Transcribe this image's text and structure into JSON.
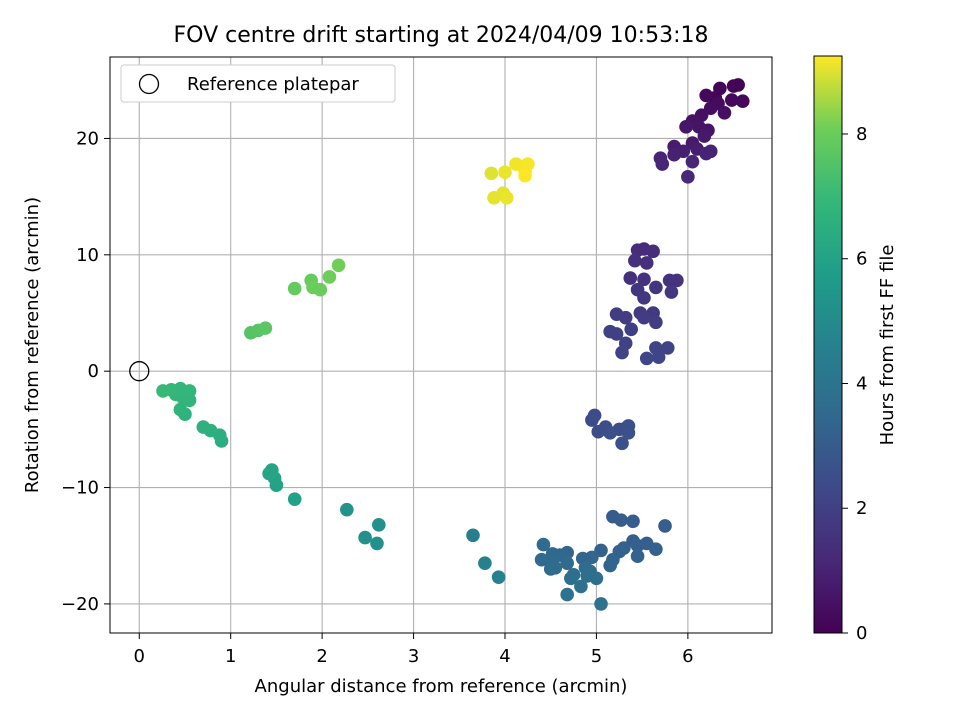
{
  "chart_data": {
    "type": "scatter",
    "title": "FOV centre drift starting at 2024/04/09 10:53:18",
    "xlabel": "Angular distance from reference (arcmin)",
    "ylabel": "Rotation from reference (arcmin)",
    "xlim": [
      -0.32,
      6.92
    ],
    "ylim": [
      -22.5,
      27.0
    ],
    "xticks": [
      0,
      1,
      2,
      3,
      4,
      5,
      6
    ],
    "yticks": [
      -20,
      -10,
      0,
      10,
      20
    ],
    "xtick_labels": [
      "0",
      "1",
      "2",
      "3",
      "4",
      "5",
      "6"
    ],
    "ytick_labels": [
      "−20",
      "−10",
      "0",
      "10",
      "20"
    ],
    "grid": true,
    "colormap": "viridis",
    "colorbar": {
      "label": "Hours from first FF file",
      "range": [
        0,
        9.25
      ],
      "ticks": [
        0,
        2,
        4,
        6,
        8
      ],
      "tick_labels": [
        "0",
        "2",
        "4",
        "6",
        "8"
      ]
    },
    "legend": {
      "placement": "top-left",
      "entries": [
        {
          "label": "Reference platepar",
          "marker": "hollow-circle"
        }
      ]
    },
    "reference_point": {
      "x": 0,
      "y": 0
    },
    "points": [
      {
        "x": 6.55,
        "y": 24.6,
        "c": 0.05
      },
      {
        "x": 6.35,
        "y": 24.3,
        "c": 0.1
      },
      {
        "x": 6.5,
        "y": 24.5,
        "c": 0.1
      },
      {
        "x": 6.3,
        "y": 23.5,
        "c": 0.15
      },
      {
        "x": 6.6,
        "y": 23.2,
        "c": 0.2
      },
      {
        "x": 6.48,
        "y": 23.3,
        "c": 0.2
      },
      {
        "x": 6.2,
        "y": 23.7,
        "c": 0.25
      },
      {
        "x": 6.33,
        "y": 23.0,
        "c": 0.3
      },
      {
        "x": 6.25,
        "y": 22.6,
        "c": 0.35
      },
      {
        "x": 6.4,
        "y": 22.2,
        "c": 0.4
      },
      {
        "x": 6.15,
        "y": 22.0,
        "c": 0.45
      },
      {
        "x": 6.05,
        "y": 21.5,
        "c": 0.5
      },
      {
        "x": 6.12,
        "y": 21.0,
        "c": 0.55
      },
      {
        "x": 6.22,
        "y": 20.7,
        "c": 0.6
      },
      {
        "x": 5.98,
        "y": 21.0,
        "c": 0.65
      },
      {
        "x": 6.18,
        "y": 20.2,
        "c": 0.7
      },
      {
        "x": 6.05,
        "y": 19.6,
        "c": 0.75
      },
      {
        "x": 5.85,
        "y": 19.3,
        "c": 0.8
      },
      {
        "x": 6.1,
        "y": 19.1,
        "c": 0.85
      },
      {
        "x": 5.95,
        "y": 18.9,
        "c": 0.9
      },
      {
        "x": 5.85,
        "y": 18.6,
        "c": 0.95
      },
      {
        "x": 6.2,
        "y": 18.7,
        "c": 1.0
      },
      {
        "x": 6.25,
        "y": 18.9,
        "c": 1.0
      },
      {
        "x": 5.7,
        "y": 18.3,
        "c": 1.05
      },
      {
        "x": 5.72,
        "y": 17.8,
        "c": 1.1
      },
      {
        "x": 6.05,
        "y": 18.0,
        "c": 1.1
      },
      {
        "x": 6.0,
        "y": 16.7,
        "c": 1.15
      },
      {
        "x": 5.52,
        "y": 10.5,
        "c": 1.3
      },
      {
        "x": 5.45,
        "y": 10.4,
        "c": 1.3
      },
      {
        "x": 5.62,
        "y": 10.3,
        "c": 1.35
      },
      {
        "x": 5.42,
        "y": 9.5,
        "c": 1.4
      },
      {
        "x": 5.55,
        "y": 9.3,
        "c": 1.4
      },
      {
        "x": 5.37,
        "y": 8.0,
        "c": 1.45
      },
      {
        "x": 5.52,
        "y": 7.9,
        "c": 1.5
      },
      {
        "x": 5.8,
        "y": 7.8,
        "c": 1.5
      },
      {
        "x": 5.88,
        "y": 7.8,
        "c": 1.55
      },
      {
        "x": 5.45,
        "y": 7.0,
        "c": 1.6
      },
      {
        "x": 5.65,
        "y": 7.2,
        "c": 1.6
      },
      {
        "x": 5.82,
        "y": 6.8,
        "c": 1.65
      },
      {
        "x": 5.52,
        "y": 6.3,
        "c": 1.7
      },
      {
        "x": 5.48,
        "y": 5.0,
        "c": 1.75
      },
      {
        "x": 5.62,
        "y": 5.0,
        "c": 1.8
      },
      {
        "x": 5.22,
        "y": 4.9,
        "c": 1.85
      },
      {
        "x": 5.32,
        "y": 4.6,
        "c": 1.85
      },
      {
        "x": 5.52,
        "y": 4.6,
        "c": 1.9
      },
      {
        "x": 5.65,
        "y": 4.2,
        "c": 1.9
      },
      {
        "x": 5.38,
        "y": 3.6,
        "c": 1.95
      },
      {
        "x": 5.15,
        "y": 3.4,
        "c": 2.0
      },
      {
        "x": 5.22,
        "y": 3.2,
        "c": 2.0
      },
      {
        "x": 5.32,
        "y": 2.4,
        "c": 2.05
      },
      {
        "x": 5.28,
        "y": 1.6,
        "c": 2.1
      },
      {
        "x": 5.65,
        "y": 2.0,
        "c": 2.1
      },
      {
        "x": 5.78,
        "y": 2.0,
        "c": 2.15
      },
      {
        "x": 5.55,
        "y": 1.1,
        "c": 2.2
      },
      {
        "x": 5.68,
        "y": 1.2,
        "c": 2.2
      },
      {
        "x": 4.95,
        "y": -4.2,
        "c": 2.4
      },
      {
        "x": 4.98,
        "y": -3.8,
        "c": 2.4
      },
      {
        "x": 5.1,
        "y": -4.8,
        "c": 2.45
      },
      {
        "x": 5.02,
        "y": -5.2,
        "c": 2.45
      },
      {
        "x": 5.25,
        "y": -5.0,
        "c": 2.5
      },
      {
        "x": 5.32,
        "y": -4.9,
        "c": 2.5
      },
      {
        "x": 5.35,
        "y": -4.7,
        "c": 2.55
      },
      {
        "x": 5.15,
        "y": -5.3,
        "c": 2.55
      },
      {
        "x": 5.28,
        "y": -6.2,
        "c": 2.6
      },
      {
        "x": 5.35,
        "y": -5.3,
        "c": 2.6
      },
      {
        "x": 5.18,
        "y": -12.5,
        "c": 3.0
      },
      {
        "x": 5.27,
        "y": -12.8,
        "c": 3.05
      },
      {
        "x": 5.4,
        "y": -12.9,
        "c": 3.05
      },
      {
        "x": 5.75,
        "y": -13.3,
        "c": 3.1
      },
      {
        "x": 5.4,
        "y": -14.6,
        "c": 3.1
      },
      {
        "x": 5.45,
        "y": -15.0,
        "c": 3.15
      },
      {
        "x": 5.55,
        "y": -14.8,
        "c": 3.15
      },
      {
        "x": 5.65,
        "y": -15.3,
        "c": 3.2
      },
      {
        "x": 5.3,
        "y": -15.2,
        "c": 3.2
      },
      {
        "x": 5.25,
        "y": -15.5,
        "c": 3.25
      },
      {
        "x": 5.05,
        "y": -15.4,
        "c": 3.3
      },
      {
        "x": 5.45,
        "y": -15.9,
        "c": 3.3
      },
      {
        "x": 5.18,
        "y": -16.2,
        "c": 3.35
      },
      {
        "x": 5.15,
        "y": -16.7,
        "c": 3.35
      },
      {
        "x": 4.95,
        "y": -16.0,
        "c": 3.4
      },
      {
        "x": 4.85,
        "y": -16.1,
        "c": 3.4
      },
      {
        "x": 4.68,
        "y": -15.6,
        "c": 3.45
      },
      {
        "x": 4.6,
        "y": -15.8,
        "c": 3.5
      },
      {
        "x": 4.52,
        "y": -15.7,
        "c": 3.5
      },
      {
        "x": 4.42,
        "y": -14.9,
        "c": 3.55
      },
      {
        "x": 4.4,
        "y": -16.2,
        "c": 3.55
      },
      {
        "x": 4.52,
        "y": -16.3,
        "c": 3.6
      },
      {
        "x": 4.68,
        "y": -16.5,
        "c": 3.6
      },
      {
        "x": 4.55,
        "y": -16.9,
        "c": 3.65
      },
      {
        "x": 4.5,
        "y": -17.0,
        "c": 3.65
      },
      {
        "x": 4.88,
        "y": -16.9,
        "c": 3.7
      },
      {
        "x": 4.93,
        "y": -17.2,
        "c": 3.7
      },
      {
        "x": 4.75,
        "y": -17.5,
        "c": 3.75
      },
      {
        "x": 4.72,
        "y": -17.8,
        "c": 3.75
      },
      {
        "x": 4.9,
        "y": -17.6,
        "c": 3.8
      },
      {
        "x": 5.0,
        "y": -17.8,
        "c": 3.8
      },
      {
        "x": 4.83,
        "y": -18.5,
        "c": 3.85
      },
      {
        "x": 4.68,
        "y": -19.2,
        "c": 3.9
      },
      {
        "x": 5.05,
        "y": -20.0,
        "c": 3.9
      },
      {
        "x": 3.65,
        "y": -14.1,
        "c": 4.5
      },
      {
        "x": 3.78,
        "y": -16.5,
        "c": 4.55
      },
      {
        "x": 3.93,
        "y": -17.7,
        "c": 4.6
      },
      {
        "x": 2.62,
        "y": -13.2,
        "c": 5.2
      },
      {
        "x": 2.6,
        "y": -14.8,
        "c": 5.25
      },
      {
        "x": 2.47,
        "y": -14.3,
        "c": 5.25
      },
      {
        "x": 2.27,
        "y": -11.9,
        "c": 5.35
      },
      {
        "x": 1.7,
        "y": -11.0,
        "c": 5.9
      },
      {
        "x": 1.5,
        "y": -9.8,
        "c": 6.0
      },
      {
        "x": 1.48,
        "y": -9.2,
        "c": 6.05
      },
      {
        "x": 1.42,
        "y": -8.8,
        "c": 6.1
      },
      {
        "x": 1.45,
        "y": -8.5,
        "c": 6.1
      },
      {
        "x": 0.9,
        "y": -6.0,
        "c": 6.45
      },
      {
        "x": 0.88,
        "y": -5.5,
        "c": 6.5
      },
      {
        "x": 0.78,
        "y": -5.1,
        "c": 6.55
      },
      {
        "x": 0.7,
        "y": -4.8,
        "c": 6.6
      },
      {
        "x": 0.5,
        "y": -3.7,
        "c": 6.7
      },
      {
        "x": 0.45,
        "y": -3.3,
        "c": 6.75
      },
      {
        "x": 0.55,
        "y": -2.5,
        "c": 6.8
      },
      {
        "x": 0.48,
        "y": -2.3,
        "c": 6.8
      },
      {
        "x": 0.4,
        "y": -2.0,
        "c": 6.85
      },
      {
        "x": 0.55,
        "y": -1.7,
        "c": 6.9
      },
      {
        "x": 0.45,
        "y": -1.5,
        "c": 6.9
      },
      {
        "x": 0.35,
        "y": -1.6,
        "c": 6.95
      },
      {
        "x": 0.26,
        "y": -1.7,
        "c": 7.0
      },
      {
        "x": 1.22,
        "y": 3.3,
        "c": 7.6
      },
      {
        "x": 1.3,
        "y": 3.5,
        "c": 7.65
      },
      {
        "x": 1.38,
        "y": 3.7,
        "c": 7.7
      },
      {
        "x": 1.7,
        "y": 7.1,
        "c": 7.9
      },
      {
        "x": 1.88,
        "y": 7.8,
        "c": 7.95
      },
      {
        "x": 1.9,
        "y": 7.2,
        "c": 8.0
      },
      {
        "x": 1.98,
        "y": 7.0,
        "c": 8.0
      },
      {
        "x": 2.08,
        "y": 8.1,
        "c": 8.05
      },
      {
        "x": 2.18,
        "y": 9.1,
        "c": 8.1
      },
      {
        "x": 3.85,
        "y": 17.0,
        "c": 9.0
      },
      {
        "x": 3.88,
        "y": 14.9,
        "c": 9.05
      },
      {
        "x": 3.98,
        "y": 15.3,
        "c": 9.05
      },
      {
        "x": 4.02,
        "y": 14.9,
        "c": 9.1
      },
      {
        "x": 4.0,
        "y": 17.1,
        "c": 9.1
      },
      {
        "x": 4.12,
        "y": 17.8,
        "c": 9.15
      },
      {
        "x": 4.2,
        "y": 17.6,
        "c": 9.15
      },
      {
        "x": 4.22,
        "y": 17.2,
        "c": 9.2
      },
      {
        "x": 4.25,
        "y": 17.8,
        "c": 9.2
      },
      {
        "x": 4.22,
        "y": 16.8,
        "c": 9.25
      }
    ]
  }
}
